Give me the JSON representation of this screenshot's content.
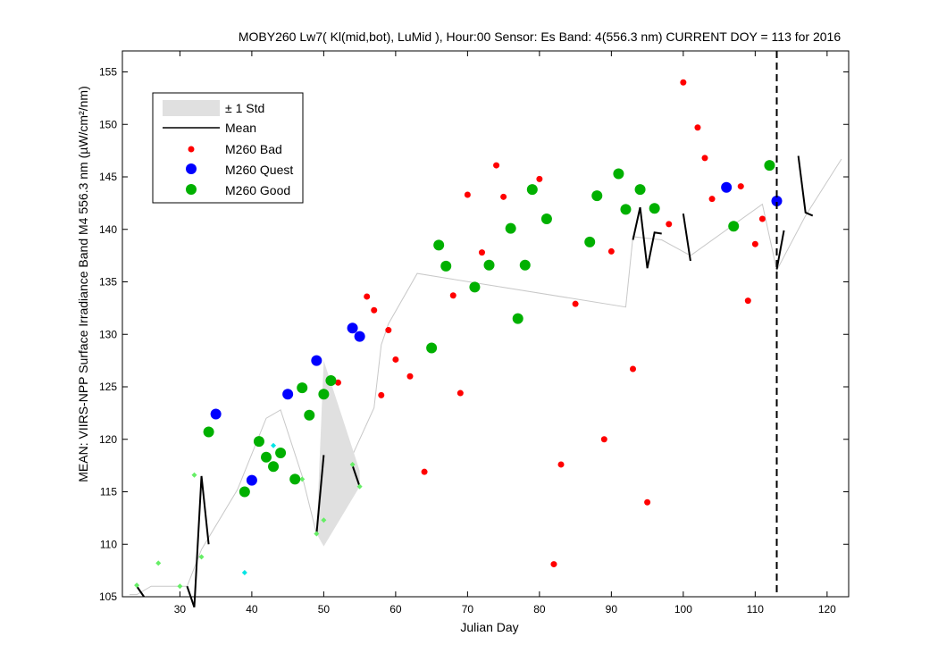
{
  "chart_data": {
    "type": "scatter",
    "title": "MOBY260   Lw7( Kl(mid,bot), LuMid ),   Hour:00 Sensor: Es Band: 4(556.3 nm)   CURRENT DOY = 113 for 2016",
    "xlabel": "Julian Day",
    "ylabel": "MEAN: VIIRS-NPP Surface Irradiance Band M4 556.3 nm (µW/cm²/nm)",
    "xlim": [
      22,
      123
    ],
    "ylim": [
      105,
      157
    ],
    "xticks": [
      30,
      40,
      50,
      60,
      70,
      80,
      90,
      100,
      110,
      120
    ],
    "yticks": [
      105,
      110,
      115,
      120,
      125,
      130,
      135,
      140,
      145,
      150,
      155
    ],
    "current_doy": 113,
    "grid": false,
    "legend_position": "top-left",
    "legend": [
      {
        "label": "± 1 Std",
        "kind": "patch",
        "color": "#e0e0e0"
      },
      {
        "label": "Mean",
        "kind": "line",
        "color": "#000000"
      },
      {
        "label": "M260 Bad",
        "kind": "marker",
        "color": "#ff0000"
      },
      {
        "label": "M260 Quest",
        "kind": "marker",
        "color": "#0000ff"
      },
      {
        "label": "M260 Good",
        "kind": "marker",
        "color": "#00b000"
      }
    ],
    "series": [
      {
        "name": "M260 Bad",
        "color": "#ff0000",
        "points": [
          [
            52,
            125.4
          ],
          [
            56,
            133.6
          ],
          [
            57,
            132.3
          ],
          [
            58,
            124.2
          ],
          [
            59,
            130.4
          ],
          [
            60,
            127.6
          ],
          [
            62,
            126.0
          ],
          [
            64,
            116.9
          ],
          [
            68,
            133.7
          ],
          [
            69,
            124.4
          ],
          [
            70,
            143.3
          ],
          [
            72,
            137.8
          ],
          [
            74,
            146.1
          ],
          [
            75,
            143.1
          ],
          [
            80,
            144.8
          ],
          [
            82,
            108.1
          ],
          [
            83,
            117.6
          ],
          [
            85,
            132.9
          ],
          [
            89,
            120.0
          ],
          [
            90,
            137.9
          ],
          [
            93,
            126.7
          ],
          [
            95,
            114.0
          ],
          [
            98,
            140.5
          ],
          [
            100,
            154.0
          ],
          [
            102,
            149.7
          ],
          [
            103,
            146.8
          ],
          [
            104,
            142.9
          ],
          [
            108,
            144.1
          ],
          [
            109,
            133.2
          ],
          [
            110,
            138.6
          ],
          [
            111,
            141.0
          ]
        ]
      },
      {
        "name": "M260 Quest",
        "color": "#0000ff",
        "points": [
          [
            35,
            122.4
          ],
          [
            40,
            116.1
          ],
          [
            45,
            124.3
          ],
          [
            49,
            127.5
          ],
          [
            54,
            130.6
          ],
          [
            55,
            129.8
          ],
          [
            106,
            144.0
          ],
          [
            113,
            142.7
          ]
        ]
      },
      {
        "name": "M260 Good",
        "color": "#00b000",
        "points": [
          [
            34,
            120.7
          ],
          [
            39,
            115.0
          ],
          [
            41,
            119.8
          ],
          [
            42,
            118.3
          ],
          [
            43,
            117.4
          ],
          [
            44,
            118.7
          ],
          [
            46,
            116.2
          ],
          [
            47,
            124.9
          ],
          [
            48,
            122.3
          ],
          [
            50,
            124.3
          ],
          [
            51,
            125.6
          ],
          [
            65,
            128.7
          ],
          [
            66,
            138.5
          ],
          [
            67,
            136.5
          ],
          [
            71,
            134.5
          ],
          [
            73,
            136.6
          ],
          [
            76,
            140.1
          ],
          [
            77,
            131.5
          ],
          [
            78,
            136.6
          ],
          [
            79,
            143.8
          ],
          [
            81,
            141.0
          ],
          [
            87,
            138.8
          ],
          [
            88,
            143.2
          ],
          [
            91,
            145.3
          ],
          [
            92,
            141.9
          ],
          [
            94,
            143.8
          ],
          [
            96,
            142.0
          ],
          [
            107,
            140.3
          ],
          [
            112,
            146.1
          ]
        ]
      }
    ],
    "std_band": [
      [
        49,
        111.0,
        111.0
      ],
      [
        50,
        109.8,
        127.5
      ],
      [
        55,
        115.5,
        117.0
      ]
    ],
    "mean_segments": [
      [
        [
          24,
          106.0
        ],
        [
          25,
          105.0
        ]
      ],
      [
        [
          31,
          106.0
        ],
        [
          32,
          104.0
        ]
      ],
      [
        [
          32,
          104.0
        ],
        [
          33,
          116.5
        ],
        [
          34,
          110.0
        ]
      ],
      [
        [
          49,
          111.0
        ],
        [
          50,
          118.5
        ]
      ],
      [
        [
          54,
          117.5
        ],
        [
          55,
          115.5
        ]
      ],
      [
        [
          93,
          139.0
        ],
        [
          94,
          142.1
        ],
        [
          95,
          136.3
        ],
        [
          96,
          139.7
        ],
        [
          97,
          139.6
        ]
      ],
      [
        [
          100,
          141.5
        ],
        [
          101,
          137.0
        ]
      ],
      [
        [
          113,
          136.2
        ],
        [
          114,
          139.9
        ]
      ],
      [
        [
          116,
          147.0
        ],
        [
          117,
          141.6
        ],
        [
          118,
          141.3
        ]
      ]
    ],
    "climatology_line": [
      [
        23,
        105.2
      ],
      [
        24,
        105.2
      ],
      [
        26,
        106.0
      ],
      [
        31,
        106.0
      ],
      [
        33,
        109.5
      ],
      [
        38,
        115.2
      ],
      [
        42,
        122.0
      ],
      [
        44,
        122.8
      ],
      [
        47,
        116.5
      ],
      [
        49,
        111.0
      ],
      [
        57,
        123.0
      ],
      [
        58,
        129.0
      ],
      [
        59,
        131.0
      ],
      [
        63,
        135.8
      ],
      [
        92,
        132.6
      ],
      [
        93,
        139.3
      ],
      [
        97,
        139.0
      ],
      [
        101,
        137.5
      ],
      [
        111,
        142.4
      ],
      [
        113,
        136.1
      ],
      [
        117,
        141.3
      ],
      [
        122,
        146.7
      ]
    ],
    "small_markers": [
      {
        "color": "#66ee66",
        "points": [
          [
            24,
            106.1
          ],
          [
            27,
            108.2
          ],
          [
            30,
            106.0
          ],
          [
            32,
            116.6
          ],
          [
            33,
            108.8
          ],
          [
            47,
            116.2
          ],
          [
            49,
            111.0
          ],
          [
            50,
            112.3
          ],
          [
            54,
            117.6
          ],
          [
            55,
            115.5
          ]
        ]
      },
      {
        "color": "#00e5e5",
        "points": [
          [
            39,
            107.3
          ],
          [
            43,
            119.4
          ]
        ]
      }
    ]
  }
}
